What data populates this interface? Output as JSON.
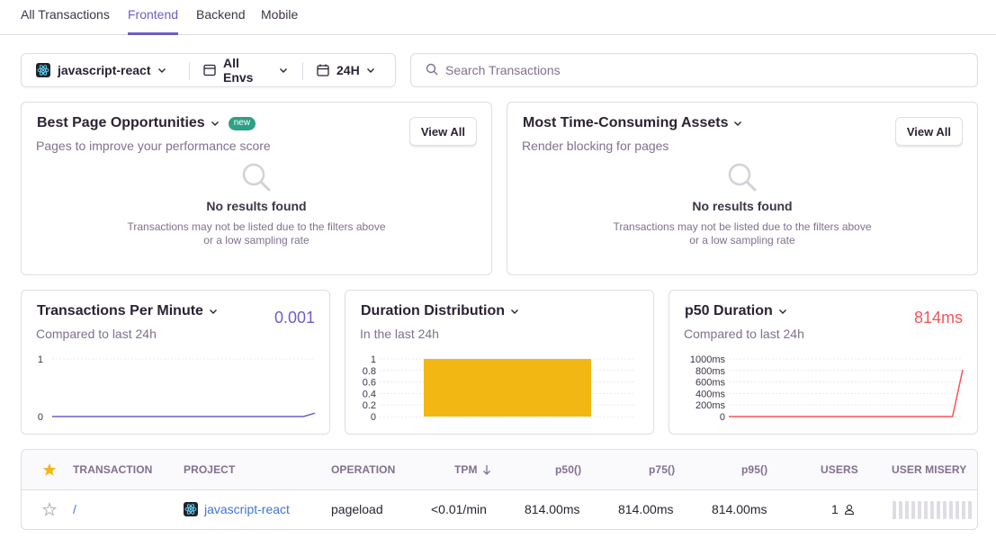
{
  "tabs": [
    {
      "label": "All Transactions",
      "active": false
    },
    {
      "label": "Frontend",
      "active": true
    },
    {
      "label": "Backend",
      "active": false
    },
    {
      "label": "Mobile",
      "active": false
    }
  ],
  "filters": {
    "project": "javascript-react",
    "environment": "All Envs",
    "period": "24H"
  },
  "search": {
    "placeholder": "Search Transactions",
    "value": ""
  },
  "opportunities": {
    "title": "Best Page Opportunities",
    "badge": "new",
    "subtitle": "Pages to improve your performance score",
    "button": "View All",
    "empty_title": "No results found",
    "empty_message": "Transactions may not be listed due to the filters above or a low sampling rate"
  },
  "assets": {
    "title": "Most Time-Consuming Assets",
    "subtitle": "Render blocking for pages",
    "button": "View All",
    "empty_title": "No results found",
    "empty_message": "Transactions may not be listed due to the filters above or a low sampling rate"
  },
  "tpm": {
    "title": "Transactions Per Minute",
    "subtitle": "Compared to last 24h",
    "value": "0.001"
  },
  "duration_dist": {
    "title": "Duration Distribution",
    "subtitle": "In the last 24h"
  },
  "p50": {
    "title": "p50 Duration",
    "subtitle": "Compared to last 24h",
    "value": "814ms"
  },
  "chart_data": [
    {
      "type": "line",
      "ylim": [
        0,
        1
      ],
      "y_ticks": [
        "0",
        "1"
      ],
      "series": [
        {
          "values": [
            0,
            0,
            0,
            0,
            0,
            0,
            0,
            0,
            0,
            0,
            0,
            0,
            0,
            0,
            0,
            0,
            0,
            0,
            0,
            0,
            0,
            0,
            0,
            0.06
          ]
        }
      ],
      "grid": true
    },
    {
      "type": "bar",
      "ylim": [
        0,
        1
      ],
      "y_ticks": [
        "0",
        "0.2",
        "0.4",
        "0.6",
        "0.8",
        "1"
      ],
      "values": [
        1
      ],
      "grid": true,
      "color": "#f2b712"
    },
    {
      "type": "line",
      "ylim": [
        0,
        1000
      ],
      "y_ticks": [
        "0",
        "200ms",
        "400ms",
        "600ms",
        "800ms",
        "1000ms"
      ],
      "series": [
        {
          "values": [
            0,
            0,
            0,
            0,
            0,
            0,
            0,
            0,
            0,
            0,
            0,
            0,
            0,
            0,
            0,
            0,
            0,
            0,
            0,
            0,
            0,
            0,
            0,
            814
          ]
        }
      ],
      "grid": true,
      "color": "#f55459"
    }
  ],
  "table": {
    "headers": [
      "Transaction",
      "Project",
      "Operation",
      "TPM",
      "p50()",
      "p75()",
      "p95()",
      "Users",
      "User Misery"
    ],
    "rows": [
      {
        "transaction": "/",
        "project": "javascript-react",
        "operation": "pageload",
        "tpm": "<0.01/min",
        "p50": "814.00ms",
        "p75": "814.00ms",
        "p95": "814.00ms",
        "users": "1"
      }
    ]
  },
  "colors": {
    "accent": "#6c5fc7",
    "star": "#f2b712",
    "error": "#f55459"
  }
}
